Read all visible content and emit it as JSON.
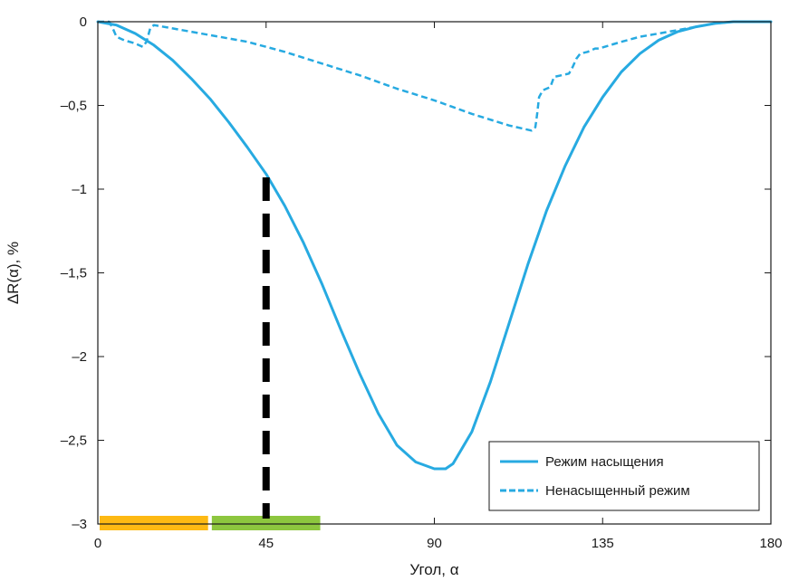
{
  "chart_data": {
    "type": "line",
    "title": "",
    "xlabel": "Угол, α",
    "ylabel": "ΔR(α), %",
    "xlim": [
      0,
      180
    ],
    "ylim": [
      -3,
      0
    ],
    "x_ticks": [
      0,
      45,
      90,
      135,
      180
    ],
    "x_tick_labels": [
      "0",
      "45",
      "90",
      "135",
      "180"
    ],
    "y_ticks": [
      0,
      -0.5,
      -1,
      -1.5,
      -2,
      -2.5,
      -3
    ],
    "y_tick_labels": [
      "0",
      "–0,5",
      "–1",
      "–1,5",
      "–2",
      "–2,5",
      "–3"
    ],
    "legend_position": "bottom-right",
    "series": [
      {
        "name": "Режим насыщения",
        "style": "solid",
        "color": "#27aae1",
        "x": [
          0,
          5,
          10,
          15,
          20,
          25,
          30,
          35,
          40,
          45,
          50,
          55,
          60,
          65,
          70,
          75,
          80,
          85,
          90,
          93,
          95,
          100,
          105,
          110,
          115,
          120,
          125,
          130,
          135,
          140,
          145,
          150,
          155,
          160,
          165,
          170,
          175,
          180
        ],
        "y": [
          0,
          -0.02,
          -0.07,
          -0.14,
          -0.23,
          -0.34,
          -0.46,
          -0.6,
          -0.75,
          -0.91,
          -1.1,
          -1.32,
          -1.57,
          -1.84,
          -2.1,
          -2.34,
          -2.53,
          -2.63,
          -2.67,
          -2.67,
          -2.64,
          -2.45,
          -2.15,
          -1.8,
          -1.45,
          -1.13,
          -0.86,
          -0.63,
          -0.45,
          -0.3,
          -0.19,
          -0.11,
          -0.06,
          -0.03,
          -0.01,
          0,
          0,
          0
        ]
      },
      {
        "name": "Ненасыщенный режим",
        "style": "dashed",
        "color": "#27aae1",
        "x": [
          0,
          3,
          4,
          5,
          7,
          10,
          12,
          13,
          14,
          15,
          20,
          30,
          40,
          50,
          60,
          70,
          80,
          90,
          100,
          110,
          114,
          116,
          117,
          117.5,
          118,
          119,
          121,
          122,
          124,
          126,
          127,
          128,
          129,
          131,
          133,
          134,
          140,
          145,
          150,
          155,
          160,
          165,
          170,
          175,
          180
        ],
        "y": [
          0,
          0,
          -0.04,
          -0.09,
          -0.11,
          -0.13,
          -0.15,
          -0.12,
          -0.04,
          -0.02,
          -0.04,
          -0.08,
          -0.12,
          -0.18,
          -0.25,
          -0.32,
          -0.4,
          -0.47,
          -0.55,
          -0.62,
          -0.64,
          -0.65,
          -0.63,
          -0.55,
          -0.45,
          -0.41,
          -0.39,
          -0.33,
          -0.32,
          -0.31,
          -0.27,
          -0.22,
          -0.19,
          -0.18,
          -0.16,
          -0.16,
          -0.12,
          -0.09,
          -0.07,
          -0.05,
          -0.03,
          -0.01,
          0,
          0,
          0
        ]
      }
    ],
    "markers": {
      "vertical_dashed_line": {
        "x": 45,
        "y_from": -3,
        "y_to": -0.93,
        "color": "#000000"
      },
      "bars": [
        {
          "x_from": 0,
          "x_to": 29,
          "y": -3,
          "color": "#fdb913"
        },
        {
          "x_from": 30,
          "x_to": 59,
          "y": -3,
          "color": "#8dc63f"
        }
      ]
    }
  }
}
